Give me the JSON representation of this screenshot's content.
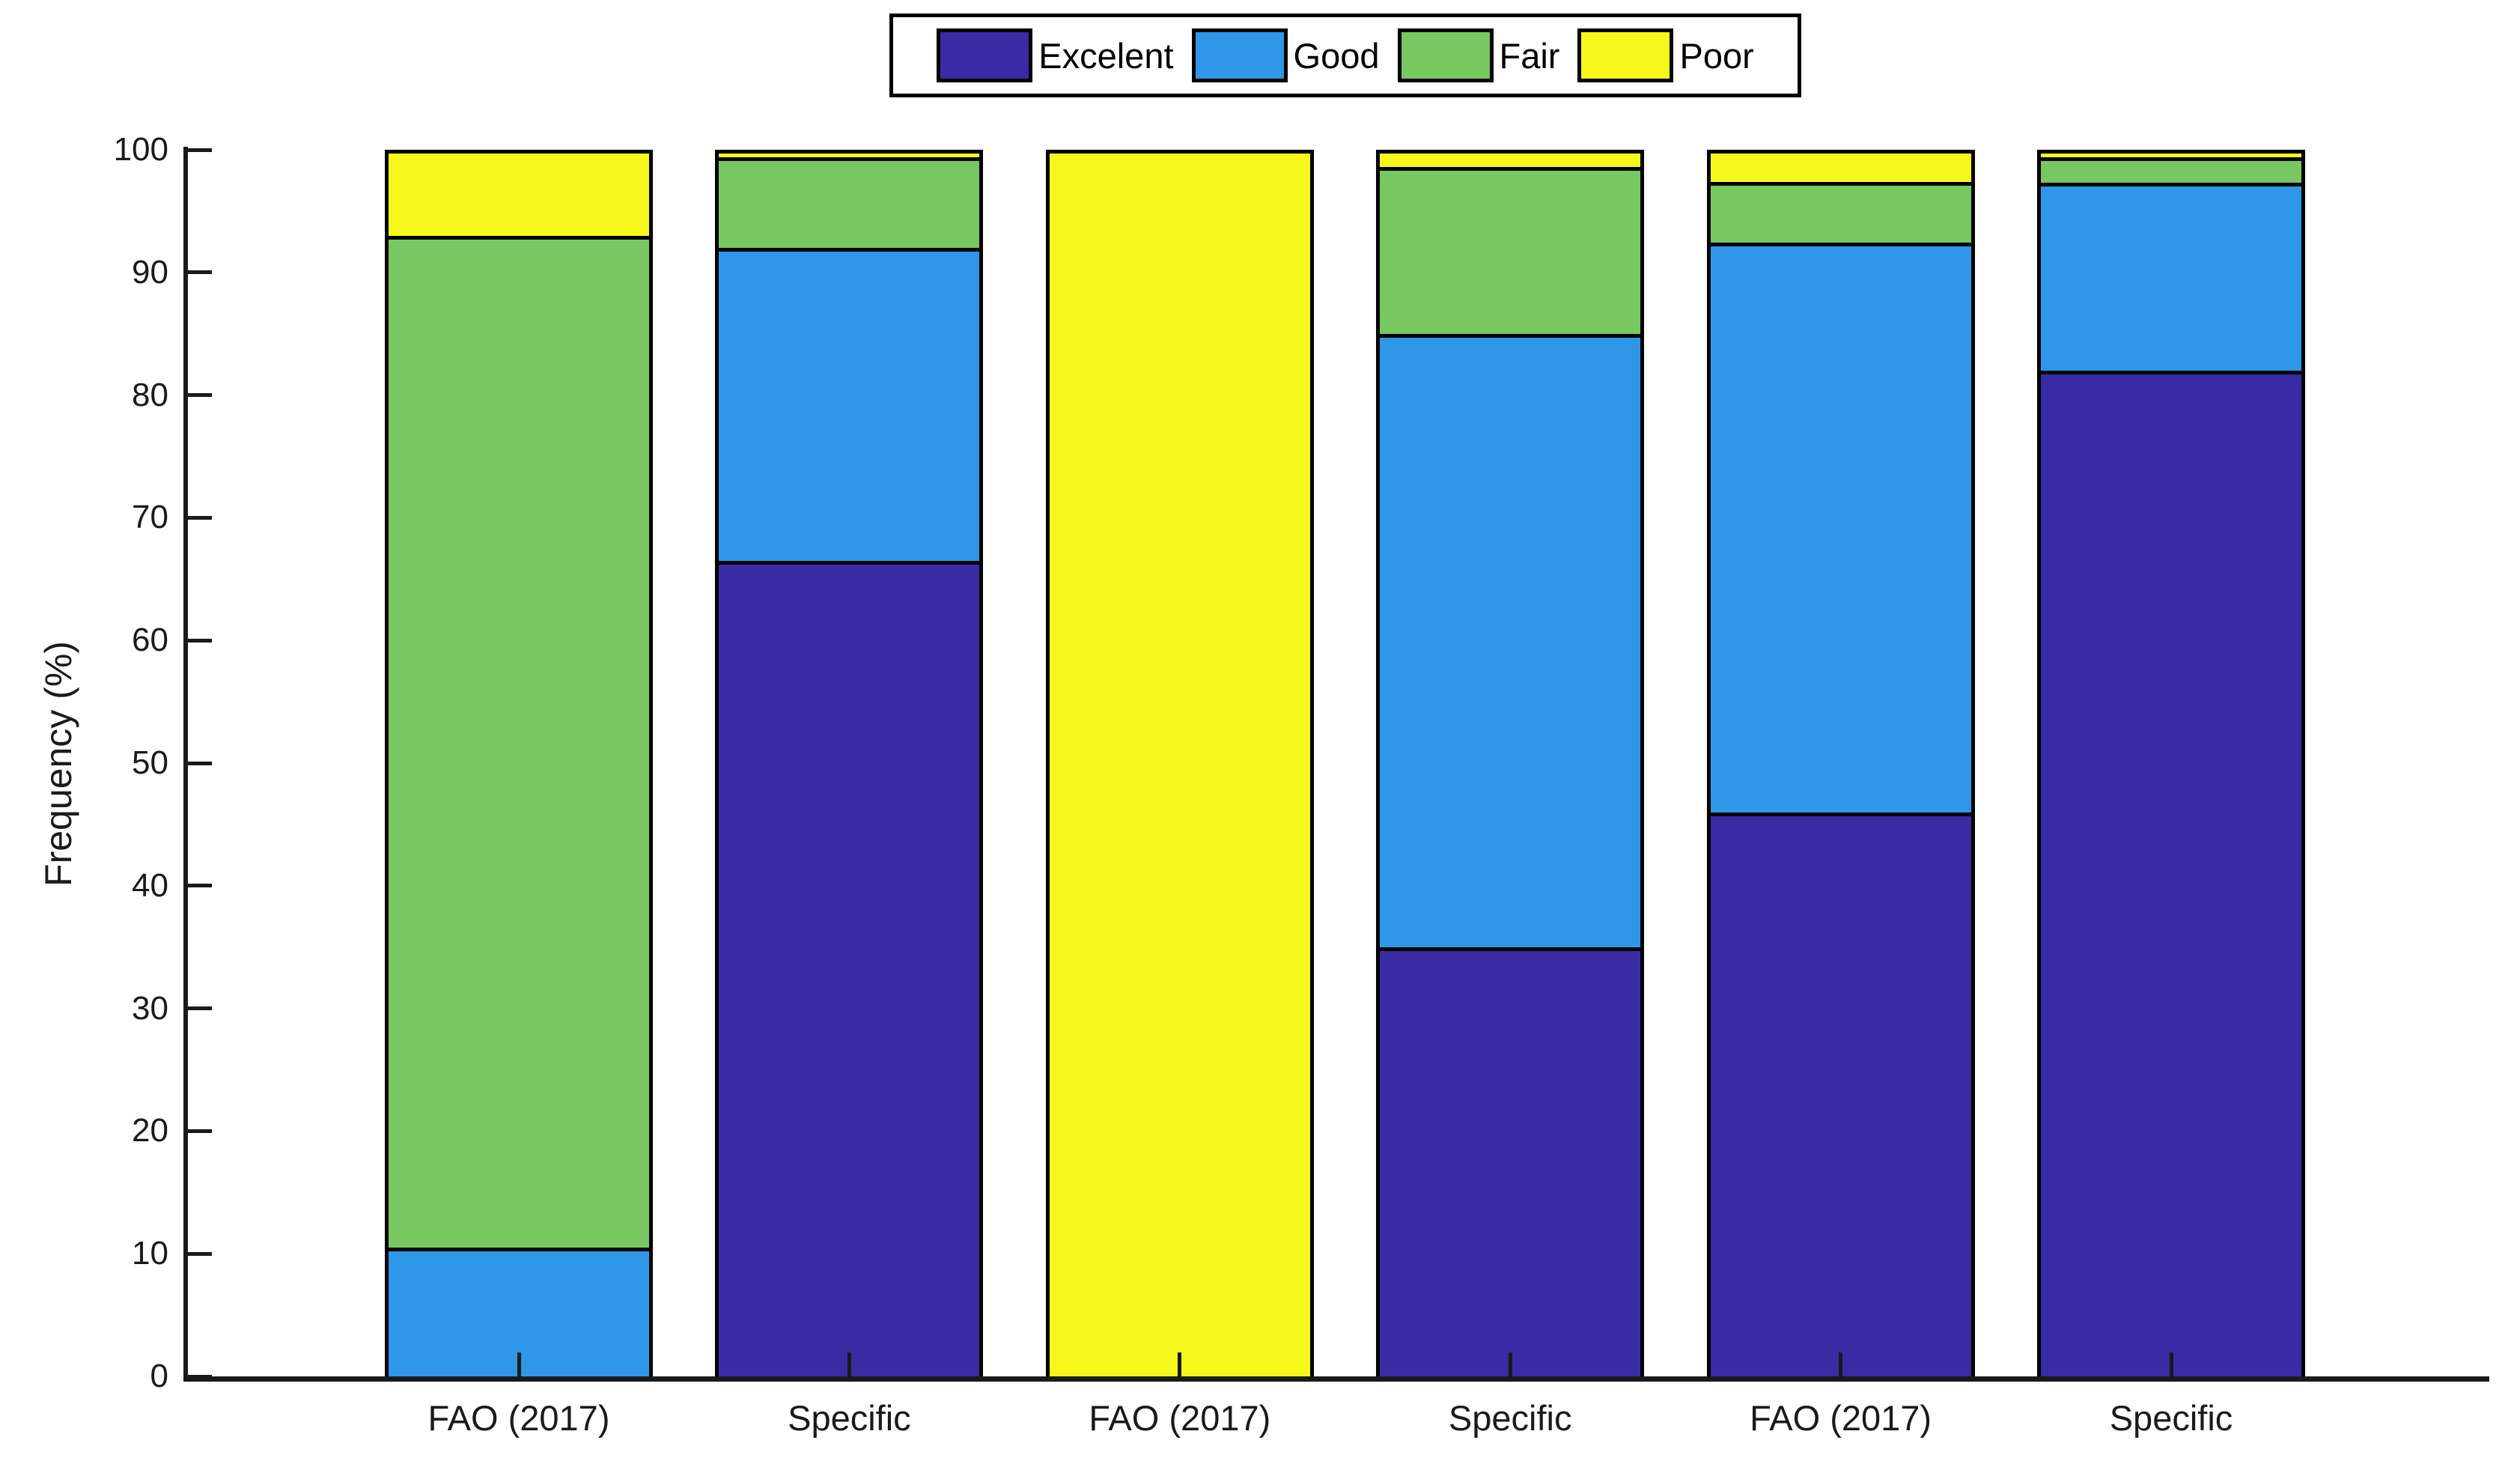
{
  "figure": {
    "background": "#ffffff",
    "axis_color": "#1a1a1a",
    "edge_color": "#000000"
  },
  "legend": {
    "items": [
      {
        "label": "Excelent",
        "color": "#3A2BA5"
      },
      {
        "label": "Good",
        "color": "#2E97E8"
      },
      {
        "label": "Fair",
        "color": "#79C760"
      },
      {
        "label": "Poor",
        "color": "#F6F71A"
      }
    ]
  },
  "chart_data": {
    "type": "bar",
    "stacked": true,
    "orientation": "vertical",
    "title": "",
    "xlabel": "",
    "ylabel": "Frequency (%)",
    "ylim": [
      0,
      100
    ],
    "yticks": [
      0,
      10,
      20,
      30,
      40,
      50,
      60,
      70,
      80,
      90,
      100
    ],
    "grid": false,
    "legend_position": "top-center",
    "categories": [
      "FAO (2017)",
      "Specific",
      "FAO (2017)",
      "Specific",
      "FAO (2017)",
      "Specific"
    ],
    "series": [
      {
        "name": "Excelent",
        "color": "#3A2BA5",
        "values": [
          0,
          66.5,
          0,
          35,
          46,
          82
        ]
      },
      {
        "name": "Good",
        "color": "#2E97E8",
        "values": [
          10.5,
          25.5,
          0,
          50,
          46.4,
          15.3
        ]
      },
      {
        "name": "Fair",
        "color": "#79C760",
        "values": [
          82.5,
          7.4,
          0,
          13.6,
          5,
          2.1
        ]
      },
      {
        "name": "Poor",
        "color": "#F6F71A",
        "values": [
          7,
          0.6,
          100,
          1.4,
          2.6,
          0.6
        ]
      }
    ]
  }
}
